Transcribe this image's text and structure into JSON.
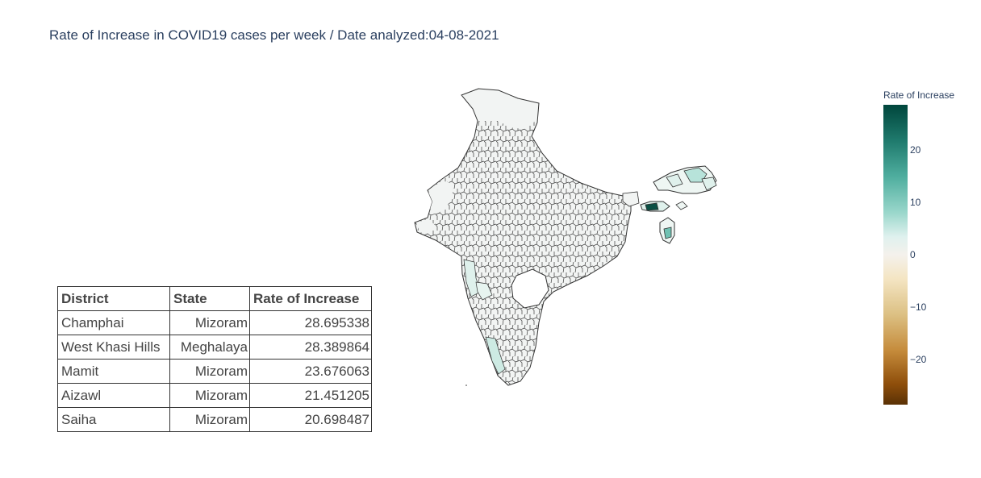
{
  "title": "Rate of Increase in COVID19 cases per week / Date analyzed:04-08-2021",
  "table": {
    "headers": [
      "District",
      "State",
      "Rate of Increase"
    ],
    "rows": [
      [
        "Champhai",
        "Mizoram",
        "28.695338"
      ],
      [
        "West Khasi Hills",
        "Meghalaya",
        "28.389864"
      ],
      [
        "Mamit",
        "Mizoram",
        "23.676063"
      ],
      [
        "Aizawl",
        "Mizoram",
        "21.451205"
      ],
      [
        "Saiha",
        "Mizoram",
        "20.698487"
      ]
    ]
  },
  "colorbar": {
    "title": "Rate of Increase",
    "range": [
      -29,
      29
    ],
    "ticks": [
      "20",
      "10",
      "0",
      "−10",
      "−20"
    ],
    "colors": {
      "max": "#00463c",
      "mid": "#f4f1ec",
      "min": "#5a3105"
    }
  },
  "map": {
    "region": "India districts",
    "default_fill": "#f2f4f3",
    "border_color": "#333333",
    "highlight_fills": {
      "dark": "#0b4f44",
      "medium": "#6fc1b2",
      "light": "#b7e3da",
      "pale": "#dff1ec"
    }
  }
}
